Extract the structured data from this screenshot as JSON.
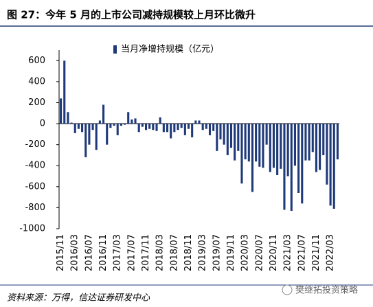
{
  "chart_data": {
    "type": "bar",
    "title": "图 27：今年 5 月的上市公司减持规模较上月环比微升",
    "legend_label": "当月净增持规模（亿元）",
    "source": "资料来源：万得，信达证券研发中心",
    "watermark": "樊继拓投资策略",
    "color": "#1f3a7a",
    "ylim": [
      -1000,
      700
    ],
    "yticks": [
      -1000,
      -800,
      -600,
      -400,
      -200,
      0,
      200,
      400,
      600
    ],
    "categories": [
      "2015/11",
      null,
      null,
      null,
      "2016/03",
      null,
      null,
      null,
      "2016/07",
      null,
      null,
      null,
      "2016/11",
      null,
      null,
      null,
      "2017/03",
      null,
      null,
      null,
      "2017/07",
      null,
      null,
      null,
      "2017/11",
      null,
      null,
      null,
      "2018/03",
      null,
      null,
      null,
      "2018/07",
      null,
      null,
      null,
      "2018/11",
      null,
      null,
      null,
      "2019/03",
      null,
      null,
      null,
      "2019/07",
      null,
      null,
      null,
      "2019/11",
      null,
      null,
      null,
      "2020/03",
      null,
      null,
      null,
      "2020/07",
      null,
      null,
      null,
      "2020/11",
      null,
      null,
      null,
      "2021/03",
      null,
      null,
      null,
      "2021/07",
      null,
      null,
      null,
      "2021/11",
      null,
      null,
      null,
      "2022/03",
      null,
      null
    ],
    "values": [
      240,
      600,
      110,
      10,
      -90,
      -50,
      -80,
      -320,
      -200,
      -60,
      -250,
      30,
      180,
      -200,
      -40,
      -20,
      -110,
      -20,
      -10,
      110,
      40,
      50,
      -80,
      -30,
      -60,
      -50,
      -60,
      -70,
      60,
      -80,
      -80,
      -140,
      -80,
      -60,
      -40,
      -110,
      -50,
      -130,
      30,
      30,
      -60,
      -50,
      -110,
      -70,
      -260,
      -150,
      -200,
      -300,
      -230,
      -350,
      -260,
      -570,
      -340,
      -360,
      -650,
      -360,
      -410,
      -420,
      -200,
      -460,
      -420,
      -490,
      -430,
      -820,
      -500,
      -830,
      -400,
      -660,
      -760,
      -350,
      -350,
      -270,
      -460,
      -440,
      -300,
      -580,
      -780,
      -810,
      -340
    ]
  }
}
